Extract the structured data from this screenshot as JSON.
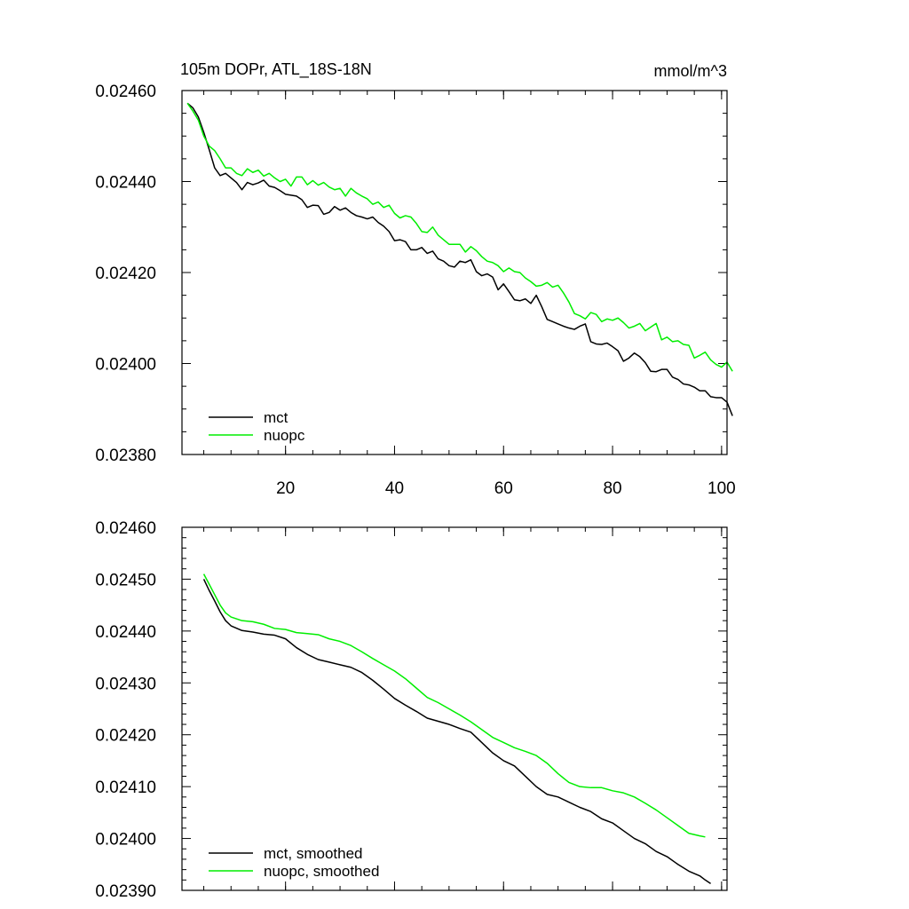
{
  "chart_data": [
    {
      "type": "line",
      "title": "105m DOPr, ATL_18S-18N",
      "units": "mmol/m^3",
      "xlim": [
        1,
        101
      ],
      "ylim": [
        0.0238,
        0.0246
      ],
      "xticks": [
        20,
        40,
        60,
        80,
        100
      ],
      "xtick_labels": [
        "20",
        "40",
        "60",
        "80",
        "100"
      ],
      "yticks": [
        0.0238,
        0.024,
        0.0242,
        0.0244,
        0.0246
      ],
      "ytick_labels": [
        "0.02380",
        "0.02400",
        "0.02420",
        "0.02440",
        "0.02460"
      ],
      "legend_position": "bottom-left",
      "series": [
        {
          "name": "mct",
          "color": "#000000",
          "x_start": 2,
          "values": [
            0.024572,
            0.024562,
            0.024542,
            0.024508,
            0.02447,
            0.02443,
            0.024413,
            0.024418,
            0.024408,
            0.024398,
            0.024382,
            0.024398,
            0.024393,
            0.024397,
            0.024403,
            0.02439,
            0.024387,
            0.02438,
            0.024372,
            0.02437,
            0.024368,
            0.02436,
            0.024343,
            0.024348,
            0.024347,
            0.024328,
            0.024332,
            0.024345,
            0.024337,
            0.024342,
            0.024332,
            0.024325,
            0.024322,
            0.024318,
            0.024322,
            0.02431,
            0.024302,
            0.02429,
            0.02427,
            0.024272,
            0.024268,
            0.02425,
            0.02425,
            0.024255,
            0.024242,
            0.024247,
            0.02423,
            0.024225,
            0.024215,
            0.024212,
            0.024225,
            0.024222,
            0.024228,
            0.024202,
            0.024193,
            0.024197,
            0.02419,
            0.024162,
            0.024175,
            0.024158,
            0.02414,
            0.024138,
            0.024142,
            0.024132,
            0.02415,
            0.024125,
            0.024097,
            0.024092,
            0.024087,
            0.024082,
            0.024078,
            0.024075,
            0.024082,
            0.024087,
            0.024048,
            0.024043,
            0.024042,
            0.024045,
            0.024037,
            0.024028,
            0.024005,
            0.024012,
            0.024023,
            0.024015,
            0.024002,
            0.023983,
            0.023982,
            0.023987,
            0.023987,
            0.02397,
            0.023965,
            0.023955,
            0.023953,
            0.023948,
            0.02394,
            0.02394,
            0.023927,
            0.023925,
            0.023925,
            0.023915,
            0.023885
          ]
        },
        {
          "name": "nuopc",
          "color": "#00ee00",
          "x_start": 2,
          "values": [
            0.024572,
            0.024555,
            0.024535,
            0.0245,
            0.024478,
            0.024468,
            0.02445,
            0.02443,
            0.02443,
            0.024418,
            0.024413,
            0.024428,
            0.02442,
            0.024425,
            0.024412,
            0.024418,
            0.024408,
            0.0244,
            0.024405,
            0.02439,
            0.02441,
            0.02441,
            0.024393,
            0.024402,
            0.024392,
            0.024398,
            0.024388,
            0.024382,
            0.024385,
            0.024368,
            0.024385,
            0.024375,
            0.024368,
            0.024362,
            0.02435,
            0.024355,
            0.024343,
            0.024348,
            0.02433,
            0.02432,
            0.024325,
            0.024322,
            0.024308,
            0.02429,
            0.024288,
            0.0243,
            0.024282,
            0.024272,
            0.024262,
            0.024262,
            0.024262,
            0.024245,
            0.024257,
            0.024248,
            0.024235,
            0.024225,
            0.024222,
            0.024215,
            0.024202,
            0.02421,
            0.024202,
            0.0242,
            0.024188,
            0.02418,
            0.02417,
            0.024172,
            0.024178,
            0.024168,
            0.024172,
            0.024155,
            0.024135,
            0.02411,
            0.024105,
            0.024098,
            0.024112,
            0.024108,
            0.024092,
            0.024098,
            0.024095,
            0.0241,
            0.02409,
            0.024078,
            0.024082,
            0.024088,
            0.024072,
            0.02408,
            0.024088,
            0.024052,
            0.024058,
            0.024048,
            0.02405,
            0.024042,
            0.02404,
            0.024012,
            0.024018,
            0.024025,
            0.024008,
            0.023998,
            0.023992,
            0.024003,
            0.023983
          ]
        }
      ]
    },
    {
      "type": "line",
      "title": "",
      "units": "",
      "xlim": [
        1,
        101
      ],
      "ylim": [
        0.0239,
        0.0246
      ],
      "xticks": [
        20,
        40,
        60,
        80,
        100
      ],
      "xtick_labels": [],
      "yticks": [
        0.0239,
        0.024,
        0.0241,
        0.0242,
        0.0243,
        0.0244,
        0.0245,
        0.0246
      ],
      "ytick_labels": [
        "0.02390",
        "0.02400",
        "0.02410",
        "0.02420",
        "0.02430",
        "0.02440",
        "0.02450",
        "0.02460"
      ],
      "legend_position": "bottom-left",
      "series": [
        {
          "name": "mct, smoothed",
          "color": "#000000",
          "points": [
            [
              5,
              0.0245
            ],
            [
              6,
              0.024478
            ],
            [
              7,
              0.024458
            ],
            [
              8,
              0.024437
            ],
            [
              9,
              0.02442
            ],
            [
              10,
              0.02441
            ],
            [
              12,
              0.024401
            ],
            [
              14,
              0.024398
            ],
            [
              16,
              0.024394
            ],
            [
              18,
              0.024392
            ],
            [
              20,
              0.024385
            ],
            [
              22,
              0.024368
            ],
            [
              24,
              0.024355
            ],
            [
              26,
              0.024345
            ],
            [
              28,
              0.02434
            ],
            [
              30,
              0.024335
            ],
            [
              32,
              0.02433
            ],
            [
              34,
              0.02432
            ],
            [
              36,
              0.024305
            ],
            [
              38,
              0.024288
            ],
            [
              40,
              0.02427
            ],
            [
              42,
              0.024257
            ],
            [
              44,
              0.024245
            ],
            [
              46,
              0.024232
            ],
            [
              48,
              0.024226
            ],
            [
              50,
              0.02422
            ],
            [
              52,
              0.024212
            ],
            [
              54,
              0.024205
            ],
            [
              56,
              0.024185
            ],
            [
              58,
              0.024165
            ],
            [
              60,
              0.02415
            ],
            [
              62,
              0.02414
            ],
            [
              64,
              0.02412
            ],
            [
              66,
              0.0241
            ],
            [
              68,
              0.024085
            ],
            [
              70,
              0.02408
            ],
            [
              72,
              0.02407
            ],
            [
              74,
              0.02406
            ],
            [
              76,
              0.024052
            ],
            [
              78,
              0.024038
            ],
            [
              80,
              0.02403
            ],
            [
              82,
              0.024015
            ],
            [
              84,
              0.024
            ],
            [
              86,
              0.02399
            ],
            [
              88,
              0.023975
            ],
            [
              90,
              0.023965
            ],
            [
              92,
              0.02395
            ],
            [
              94,
              0.023937
            ],
            [
              96,
              0.023928
            ],
            [
              97,
              0.02392
            ],
            [
              98,
              0.023913
            ]
          ]
        },
        {
          "name": "nuopc, smoothed",
          "color": "#00ee00",
          "points": [
            [
              5,
              0.02451
            ],
            [
              6,
              0.02449
            ],
            [
              7,
              0.02447
            ],
            [
              8,
              0.02445
            ],
            [
              9,
              0.024435
            ],
            [
              10,
              0.024427
            ],
            [
              12,
              0.02442
            ],
            [
              14,
              0.024418
            ],
            [
              16,
              0.024413
            ],
            [
              18,
              0.024405
            ],
            [
              20,
              0.024403
            ],
            [
              22,
              0.024397
            ],
            [
              24,
              0.024395
            ],
            [
              26,
              0.024393
            ],
            [
              28,
              0.024385
            ],
            [
              30,
              0.02438
            ],
            [
              32,
              0.024372
            ],
            [
              34,
              0.02436
            ],
            [
              36,
              0.024347
            ],
            [
              38,
              0.024335
            ],
            [
              40,
              0.024323
            ],
            [
              42,
              0.024308
            ],
            [
              44,
              0.02429
            ],
            [
              46,
              0.024272
            ],
            [
              48,
              0.024262
            ],
            [
              50,
              0.02425
            ],
            [
              52,
              0.024238
            ],
            [
              54,
              0.024225
            ],
            [
              56,
              0.02421
            ],
            [
              58,
              0.024195
            ],
            [
              60,
              0.024185
            ],
            [
              62,
              0.024175
            ],
            [
              64,
              0.024168
            ],
            [
              66,
              0.02416
            ],
            [
              68,
              0.024145
            ],
            [
              70,
              0.024125
            ],
            [
              72,
              0.024108
            ],
            [
              74,
              0.0241
            ],
            [
              76,
              0.024098
            ],
            [
              78,
              0.024098
            ],
            [
              80,
              0.024092
            ],
            [
              82,
              0.024088
            ],
            [
              84,
              0.02408
            ],
            [
              86,
              0.024068
            ],
            [
              88,
              0.024055
            ],
            [
              90,
              0.02404
            ],
            [
              92,
              0.024025
            ],
            [
              94,
              0.02401
            ],
            [
              96,
              0.024005
            ],
            [
              97,
              0.024003
            ]
          ]
        }
      ]
    }
  ]
}
